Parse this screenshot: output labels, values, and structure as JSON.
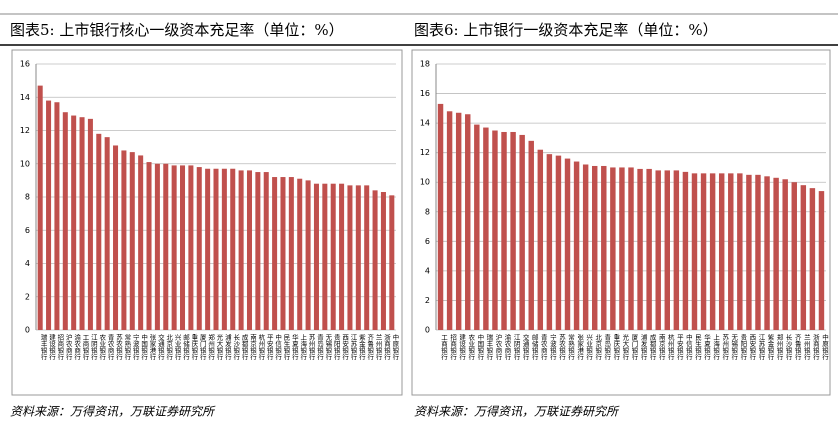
{
  "chart_data": [
    {
      "type": "bar",
      "title": "图表5:    上市银行核心一级资本充足率（单位：%）",
      "source": "资料来源：万得资讯，万联证券研究所",
      "color": "#c0504d",
      "grid": true,
      "ylim": [
        0,
        16
      ],
      "yticks": [
        0,
        2,
        4,
        6,
        8,
        10,
        12,
        14,
        16
      ],
      "categories": [
        "瑞丰银行",
        "建设银行",
        "招商银行",
        "沪农商行",
        "渝农商行",
        "工商银行",
        "江阴银行",
        "农业银行",
        "青农商行",
        "苏农银行",
        "常熟银行",
        "宁波银行",
        "中国银行",
        "张家港行",
        "交通银行",
        "北京银行",
        "兴业银行",
        "邮储银行",
        "重庆银行",
        "厦门银行",
        "郑州银行",
        "光大银行",
        "浦发银行",
        "长沙银行",
        "成都银行",
        "南京银行",
        "杭州银行",
        "平安银行",
        "中信银行",
        "民生银行",
        "华夏银行",
        "上海银行",
        "苏州银行",
        "青岛银行",
        "无锡银行",
        "贵阳银行",
        "西安银行",
        "江苏银行",
        "紫金银行",
        "齐鲁银行",
        "兰州银行",
        "浙商银行",
        "中原银行"
      ],
      "values": [
        14.7,
        13.8,
        13.7,
        13.1,
        12.9,
        12.8,
        12.7,
        11.8,
        11.6,
        11.1,
        10.8,
        10.7,
        10.5,
        10.1,
        10.0,
        10.0,
        9.9,
        9.9,
        9.9,
        9.8,
        9.7,
        9.7,
        9.7,
        9.7,
        9.6,
        9.6,
        9.5,
        9.5,
        9.2,
        9.2,
        9.2,
        9.1,
        9.0,
        8.8,
        8.8,
        8.8,
        8.8,
        8.7,
        8.7,
        8.7,
        8.4,
        8.3,
        8.1
      ]
    },
    {
      "type": "bar",
      "title": "图表6:    上市银行一级资本充足率（单位：%）",
      "source": "资料来源：万得资讯，万联证券研究所",
      "color": "#c0504d",
      "grid": true,
      "ylim": [
        0,
        18
      ],
      "yticks": [
        0,
        2,
        4,
        6,
        8,
        10,
        12,
        14,
        16,
        18
      ],
      "categories": [
        "工商银行",
        "招商银行",
        "建设银行",
        "农业银行",
        "中国银行",
        "瑞丰银行",
        "沪农商行",
        "渝农商行",
        "江阴银行",
        "交通银行",
        "邮储银行",
        "青农商行",
        "宁波银行",
        "苏农银行",
        "常熟银行",
        "张家港行",
        "兴业银行",
        "北京银行",
        "青岛银行",
        "重庆银行",
        "光大银行",
        "厦门银行",
        "浦发银行",
        "成都银行",
        "南京银行",
        "杭州银行",
        "平安银行",
        "中信银行",
        "民生银行",
        "华夏银行",
        "上海银行",
        "苏州银行",
        "无锡银行",
        "贵阳银行",
        "西安银行",
        "江苏银行",
        "紫金银行",
        "郑州银行",
        "长沙银行",
        "齐鲁银行",
        "兰州银行",
        "浙商银行",
        "中原银行"
      ],
      "values": [
        15.3,
        14.8,
        14.7,
        14.6,
        13.9,
        13.7,
        13.5,
        13.4,
        13.4,
        13.2,
        12.8,
        12.2,
        11.9,
        11.8,
        11.6,
        11.4,
        11.2,
        11.1,
        11.1,
        11.0,
        11.0,
        11.0,
        10.9,
        10.9,
        10.8,
        10.8,
        10.8,
        10.7,
        10.6,
        10.6,
        10.6,
        10.6,
        10.6,
        10.6,
        10.5,
        10.5,
        10.4,
        10.3,
        10.2,
        10.0,
        9.8,
        9.6,
        9.4
      ]
    }
  ]
}
